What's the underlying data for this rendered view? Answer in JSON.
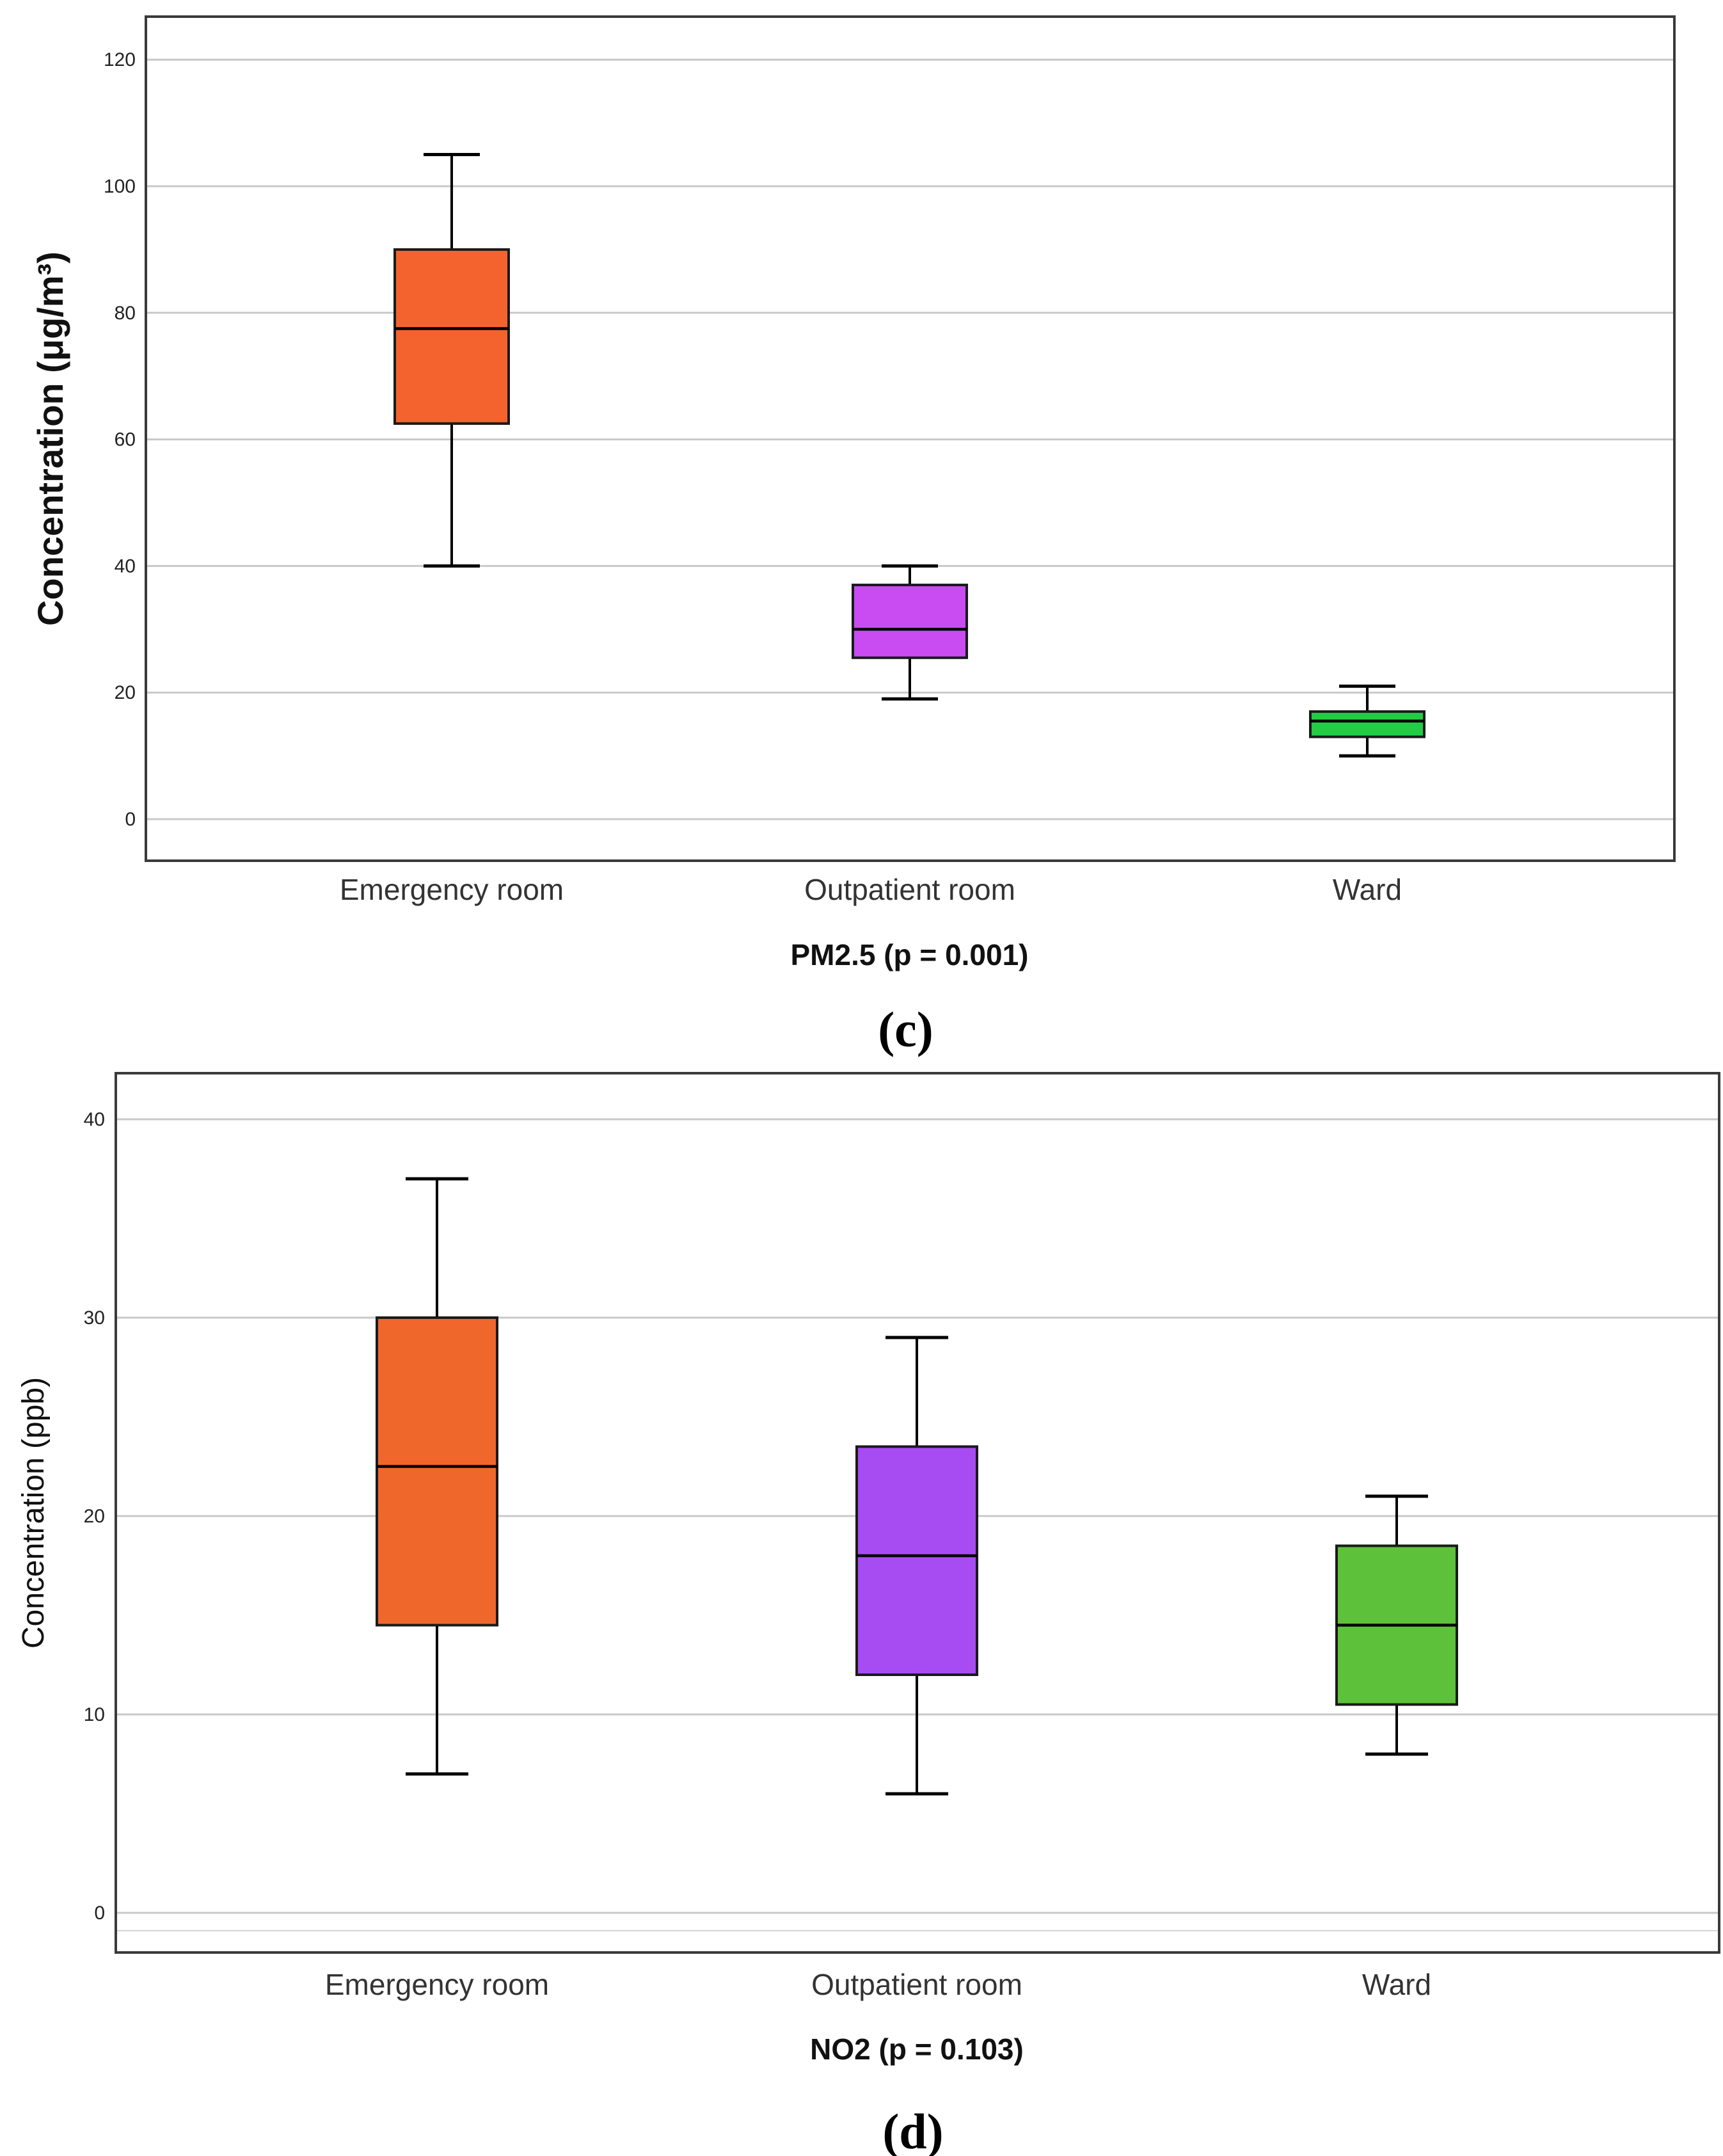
{
  "chart_data": [
    {
      "type": "boxplot",
      "panel_label": "(c)",
      "xlabel": "PM2.5 (p = 0.001)",
      "ylabel": "Concentration (μg/m³)",
      "ylim": [
        -7,
        126
      ],
      "yticks": [
        0,
        20,
        40,
        60,
        80,
        100,
        120
      ],
      "grid": true,
      "categories": [
        "Emergency room",
        "Outpatient room",
        "Ward"
      ],
      "boxes": [
        {
          "min": 40,
          "q1": 62.5,
          "median": 77.5,
          "q3": 90,
          "max": 105,
          "color": "#F4622E"
        },
        {
          "min": 19,
          "q1": 25.5,
          "median": 30,
          "q3": 37,
          "max": 40,
          "color": "#C94CF3"
        },
        {
          "min": 10,
          "q1": 13,
          "median": 15.5,
          "q3": 17,
          "max": 21,
          "color": "#22CC44"
        }
      ]
    },
    {
      "type": "boxplot",
      "panel_label": "(d)",
      "xlabel": "NO2 (p = 0.103)",
      "ylabel": "Concentration (ppb)",
      "ylim": [
        -2,
        42.2
      ],
      "yticks": [
        0,
        10,
        20,
        30,
        40
      ],
      "grid": true,
      "categories": [
        "Emergency room",
        "Outpatient room",
        "Ward"
      ],
      "boxes": [
        {
          "min": 7,
          "q1": 14.5,
          "median": 22.5,
          "q3": 30,
          "max": 37,
          "color": "#F0672C"
        },
        {
          "min": 6,
          "q1": 12,
          "median": 18,
          "q3": 23.5,
          "max": 29,
          "color": "#A64CF2"
        },
        {
          "min": 8,
          "q1": 10.5,
          "median": 14.5,
          "q3": 18.5,
          "max": 21,
          "color": "#5DC23A"
        }
      ]
    }
  ]
}
